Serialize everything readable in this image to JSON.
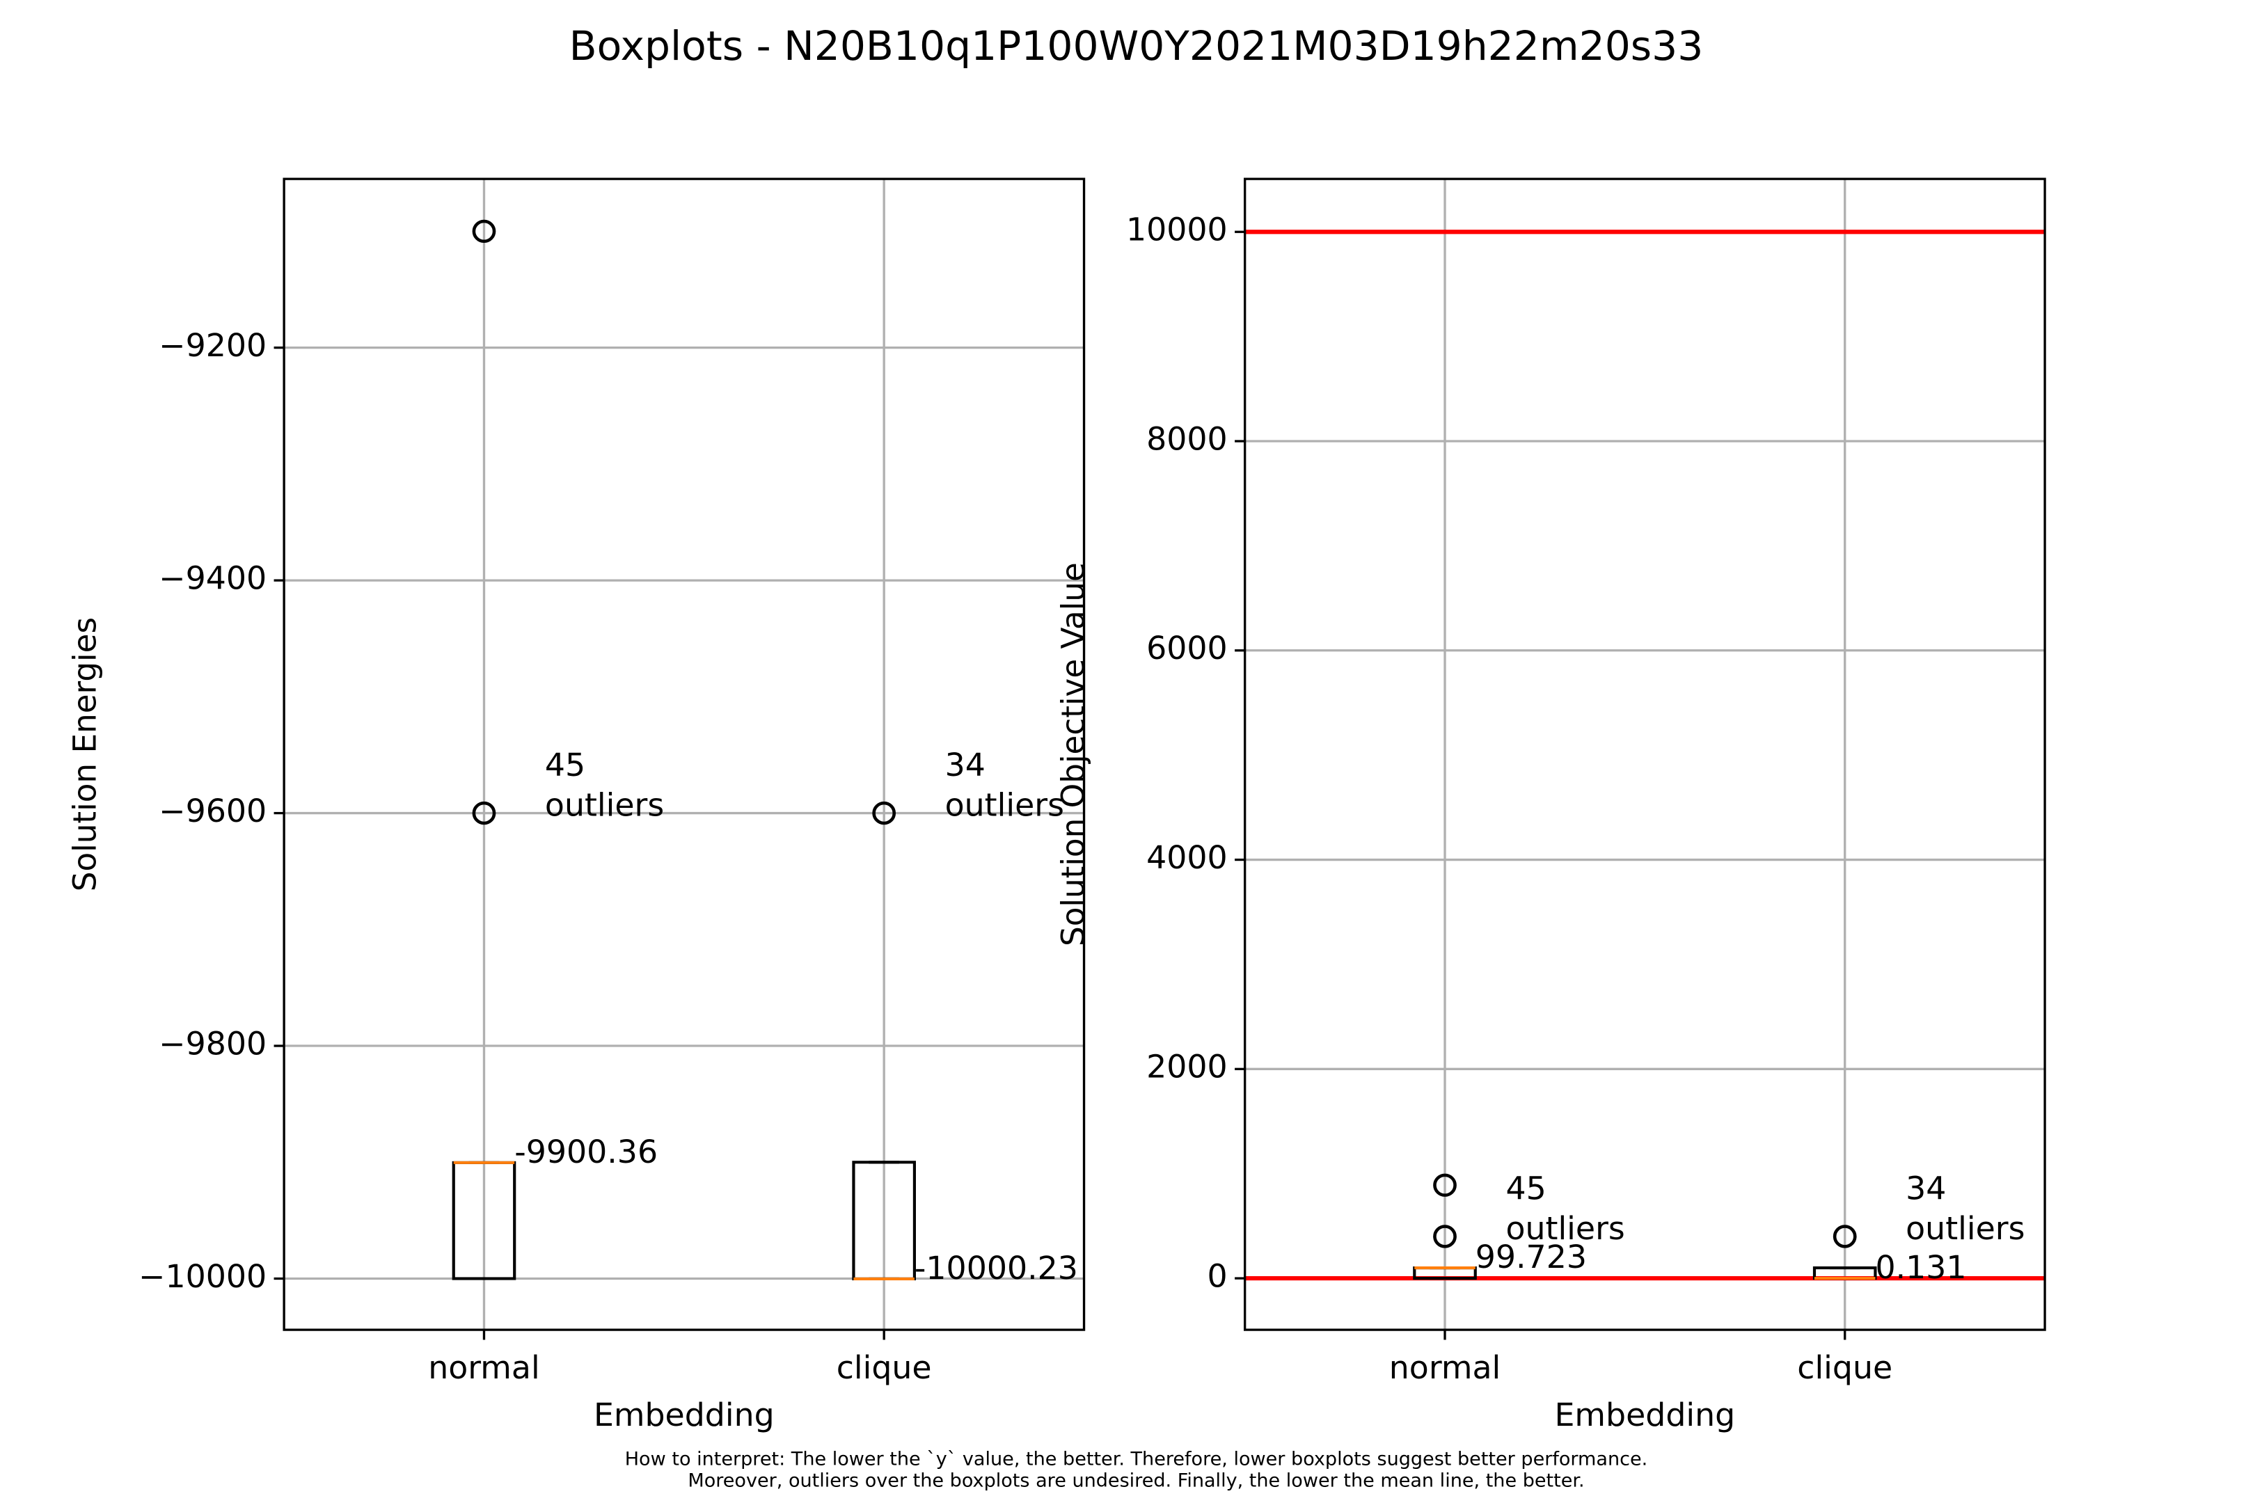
{
  "title": "Boxplots - N20B10q1P100W0Y2021M03D19h22m20s33",
  "notes": [
    "How to interpret: The lower the `y` value, the better. Therefore, lower boxplots suggest better performance.",
    "Moreover, outliers over the boxplots are undesired. Finally, the lower the mean line, the better."
  ],
  "chart_data": [
    {
      "type": "boxplot",
      "ylabel": "Solution Energies",
      "xlabel": "Embedding",
      "categories": [
        "normal",
        "clique"
      ],
      "ylim": [
        -10044,
        -9055
      ],
      "yticks": [
        {
          "value": -10000,
          "label": "−10000"
        },
        {
          "value": -9800,
          "label": "−9800"
        },
        {
          "value": -9600,
          "label": "−9600"
        },
        {
          "value": -9400,
          "label": "−9400"
        },
        {
          "value": -9200,
          "label": "−9200"
        }
      ],
      "grid": true,
      "box_color": "#000000",
      "median_color": "#ff7f0e",
      "boxes": [
        {
          "whisker_low": -10000,
          "q1": -10000,
          "median": -9900.36,
          "q3": -9900.36,
          "whisker_high": -9900.36,
          "outliers": [
            -9600,
            -9100
          ],
          "outlier_count": 45,
          "outlier_label": "outliers"
        },
        {
          "whisker_low": -10000.23,
          "q1": -10000.23,
          "median": -10000.23,
          "q3": -9900,
          "whisker_high": -9900,
          "outliers": [
            -9600
          ],
          "outlier_count": 34,
          "outlier_label": "outliers"
        }
      ],
      "hlines": []
    },
    {
      "type": "boxplot",
      "ylabel": "Solution Objective Value",
      "xlabel": "Embedding",
      "categories": [
        "normal",
        "clique"
      ],
      "ylim": [
        -492,
        10506
      ],
      "yticks": [
        0,
        2000,
        4000,
        6000,
        8000,
        10000
      ],
      "grid": true,
      "box_color": "#000000",
      "median_color": "#ff7f0e",
      "boxes": [
        {
          "whisker_low": 0,
          "q1": 0,
          "median": 99.723,
          "q3": 99.723,
          "whisker_high": 99.723,
          "outliers": [
            400,
            890
          ],
          "outlier_count": 45,
          "outlier_label": "outliers"
        },
        {
          "whisker_low": 0.131,
          "q1": 0.131,
          "median": 0.131,
          "q3": 100,
          "whisker_high": 100,
          "outliers": [
            400
          ],
          "outlier_count": 34,
          "outlier_label": "outliers"
        }
      ],
      "hlines": [
        {
          "value": 0,
          "color": "#ff0000"
        },
        {
          "value": 10000,
          "color": "#ff0000"
        }
      ]
    }
  ]
}
